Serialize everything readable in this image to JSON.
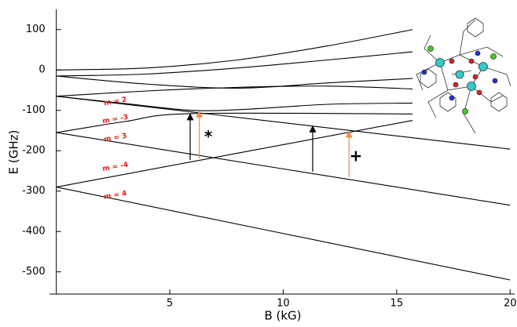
{
  "chart_data": {
    "type": "line",
    "xlabel": "B (kG)",
    "ylabel": "E (GHz)",
    "xlim": [
      -0.3,
      20.2
    ],
    "ylim": [
      -555,
      150
    ],
    "xticks": [
      5,
      10,
      15,
      20
    ],
    "yticks": [
      100,
      0,
      -100,
      -200,
      -300,
      -400,
      -500
    ],
    "line_color": "#000000",
    "series": [
      {
        "x": [
          0,
          4,
          8,
          12,
          15.7
        ],
        "values": [
          0,
          5,
          25,
          60,
          100
        ]
      },
      {
        "x": [
          0,
          4,
          8,
          12,
          15.7
        ],
        "values": [
          -15,
          -10,
          5,
          25,
          45
        ]
      },
      {
        "x": [
          0,
          4,
          8,
          12,
          15.7
        ],
        "values": [
          -15,
          -35,
          -45,
          -32,
          -21
        ]
      },
      {
        "x": [
          0,
          4,
          8,
          12,
          15.7
        ],
        "values": [
          -65,
          -52,
          -43,
          -40,
          -47
        ]
      },
      {
        "x": [
          0,
          3,
          6,
          8.5,
          12,
          15.7
        ],
        "values": [
          -65,
          -83,
          -100,
          -97,
          -85,
          -82
        ]
      },
      {
        "x": [
          0,
          20
        ],
        "values": [
          -65,
          -196
        ]
      },
      {
        "x": [
          0,
          3,
          6,
          15.7
        ],
        "values": [
          -155,
          -128,
          -108,
          -109
        ]
      },
      {
        "x": [
          0,
          20
        ],
        "values": [
          -155,
          -335
        ]
      },
      {
        "x": [
          0,
          15.7
        ],
        "values": [
          -290,
          -125
        ]
      },
      {
        "x": [
          0,
          20
        ],
        "values": [
          -290,
          -520
        ]
      }
    ],
    "arrows": [
      {
        "x": 5.9,
        "y_from": -223,
        "y_to": -107,
        "color": "#000000"
      },
      {
        "x": 6.3,
        "y_from": -220,
        "y_to": -100,
        "color": "#f08c50"
      },
      {
        "x": 11.3,
        "y_from": -252,
        "y_to": -137,
        "color": "#000000"
      },
      {
        "x": 12.9,
        "y_from": -266,
        "y_to": -150,
        "color": "#f08c50"
      }
    ],
    "annotations": [
      {
        "text": "m = 2",
        "x": 2.6,
        "y": -78,
        "color": "#e0201b"
      },
      {
        "text": "m = -3",
        "x": 2.6,
        "y": -122,
        "color": "#e0201b"
      },
      {
        "text": "m = 3",
        "x": 2.6,
        "y": -168,
        "color": "#e0201b"
      },
      {
        "text": "m = -4",
        "x": 2.6,
        "y": -240,
        "color": "#e0201b"
      },
      {
        "text": "m = 4",
        "x": 2.6,
        "y": -310,
        "color": "#e0201b"
      },
      {
        "text": "*",
        "x": 6.7,
        "y": -168,
        "color": "#000000"
      },
      {
        "text": "+",
        "x": 13.2,
        "y": -215,
        "color": "#000000"
      }
    ]
  }
}
